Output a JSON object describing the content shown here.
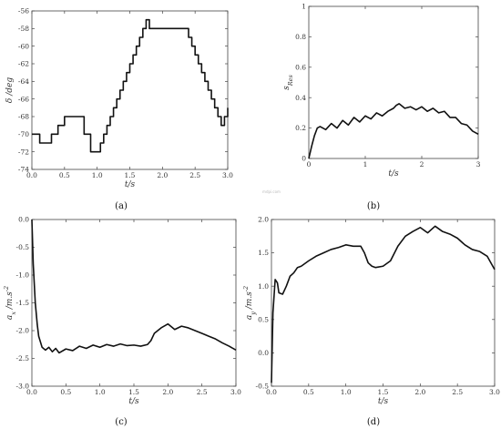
{
  "watermark": "mdpi.com",
  "chart_data": [
    {
      "type": "line",
      "caption": "(a)",
      "xlabel": "t/s",
      "ylabel": "δ /deg",
      "xlim": [
        0,
        3
      ],
      "ylim": [
        -74,
        -56
      ],
      "xticks": [
        "0.0",
        "0.5",
        "1.0",
        "1.5",
        "2.0",
        "2.5",
        "3.0"
      ],
      "yticks": [
        "-56",
        "-58",
        "-60",
        "-62",
        "-64",
        "-66",
        "-68",
        "-70",
        "-72",
        "-74"
      ],
      "series": [
        {
          "step": true,
          "x": [
            0,
            0.12,
            0.2,
            0.3,
            0.4,
            0.5,
            0.6,
            0.7,
            0.8,
            0.9,
            0.95,
            1.0,
            1.05,
            1.1,
            1.15,
            1.2,
            1.25,
            1.3,
            1.35,
            1.4,
            1.45,
            1.5,
            1.55,
            1.6,
            1.65,
            1.7,
            1.75,
            1.8,
            1.85,
            2.4,
            2.45,
            2.5,
            2.55,
            2.6,
            2.65,
            2.7,
            2.75,
            2.8,
            2.85,
            2.9,
            2.95,
            3.0
          ],
          "y": [
            -70,
            -71,
            -71,
            -70,
            -69,
            -68,
            -68,
            -68,
            -70,
            -72,
            -72,
            -72,
            -71,
            -70,
            -69,
            -68,
            -67,
            -66,
            -65,
            -64,
            -63,
            -62,
            -61,
            -60,
            -59,
            -58,
            -57,
            -58,
            -58,
            -59,
            -60,
            -61,
            -62,
            -63,
            -64,
            -65,
            -66,
            -67,
            -68,
            -69,
            -68,
            -67
          ]
        }
      ]
    },
    {
      "type": "line",
      "caption": "(b)",
      "xlabel": "t/s",
      "ylabel": "s_Res",
      "xlim": [
        0,
        3
      ],
      "ylim": [
        0,
        1
      ],
      "xticks": [
        "0",
        "1",
        "2",
        "3"
      ],
      "yticks": [
        "0",
        "0.2",
        "0.4",
        "0.6",
        "0.8",
        "1"
      ],
      "series": [
        {
          "x": [
            0,
            0.05,
            0.1,
            0.15,
            0.2,
            0.3,
            0.4,
            0.5,
            0.6,
            0.7,
            0.8,
            0.9,
            1.0,
            1.1,
            1.2,
            1.3,
            1.4,
            1.5,
            1.55,
            1.6,
            1.7,
            1.8,
            1.9,
            2.0,
            2.1,
            2.2,
            2.3,
            2.4,
            2.5,
            2.6,
            2.7,
            2.8,
            2.9,
            3.0
          ],
          "y": [
            0.0,
            0.08,
            0.15,
            0.2,
            0.21,
            0.19,
            0.23,
            0.2,
            0.25,
            0.22,
            0.27,
            0.24,
            0.28,
            0.26,
            0.3,
            0.28,
            0.31,
            0.33,
            0.35,
            0.36,
            0.33,
            0.34,
            0.32,
            0.34,
            0.31,
            0.33,
            0.3,
            0.31,
            0.27,
            0.27,
            0.23,
            0.22,
            0.18,
            0.16
          ]
        }
      ]
    },
    {
      "type": "line",
      "caption": "(c)",
      "xlabel": "t/s",
      "ylabel": "a_x /m.s^-2",
      "xlim": [
        0,
        3
      ],
      "ylim": [
        -3,
        0
      ],
      "xticks": [
        "0.0",
        "0.5",
        "1.0",
        "1.5",
        "2.0",
        "2.5",
        "3.0"
      ],
      "yticks": [
        "0.0",
        "-0.5",
        "-1.0",
        "-1.5",
        "-2.0",
        "-2.5",
        "-3.0"
      ],
      "series": [
        {
          "x": [
            0,
            0.02,
            0.05,
            0.08,
            0.1,
            0.15,
            0.2,
            0.25,
            0.3,
            0.35,
            0.4,
            0.5,
            0.6,
            0.7,
            0.8,
            0.9,
            1.0,
            1.1,
            1.2,
            1.3,
            1.4,
            1.5,
            1.6,
            1.7,
            1.75,
            1.8,
            1.9,
            2.0,
            2.1,
            2.2,
            2.3,
            2.4,
            2.5,
            2.6,
            2.7,
            2.8,
            2.9,
            3.0
          ],
          "y": [
            0.0,
            -0.8,
            -1.5,
            -1.9,
            -2.1,
            -2.3,
            -2.35,
            -2.3,
            -2.38,
            -2.32,
            -2.4,
            -2.33,
            -2.36,
            -2.28,
            -2.32,
            -2.26,
            -2.3,
            -2.25,
            -2.28,
            -2.24,
            -2.27,
            -2.26,
            -2.28,
            -2.25,
            -2.18,
            -2.05,
            -1.95,
            -1.88,
            -1.98,
            -1.92,
            -1.95,
            -2.0,
            -2.05,
            -2.1,
            -2.15,
            -2.22,
            -2.28,
            -2.35
          ]
        }
      ]
    },
    {
      "type": "line",
      "caption": "(d)",
      "xlabel": "t/s",
      "ylabel": "a_y /m.s^-2",
      "xlim": [
        0,
        3
      ],
      "ylim": [
        -0.5,
        2
      ],
      "xticks": [
        "0.0",
        "0.5",
        "1.0",
        "1.5",
        "2.0",
        "2.5",
        "3.0"
      ],
      "yticks": [
        "2.0",
        "1.5",
        "1.0",
        "0.5",
        "0.0",
        "-0.5"
      ],
      "series": [
        {
          "x": [
            0,
            0.02,
            0.05,
            0.08,
            0.1,
            0.15,
            0.2,
            0.25,
            0.3,
            0.35,
            0.4,
            0.5,
            0.6,
            0.7,
            0.8,
            0.9,
            1.0,
            1.1,
            1.2,
            1.25,
            1.3,
            1.35,
            1.4,
            1.5,
            1.6,
            1.7,
            1.8,
            1.9,
            2.0,
            2.1,
            2.2,
            2.3,
            2.4,
            2.5,
            2.6,
            2.7,
            2.8,
            2.9,
            2.95,
            3.0
          ],
          "y": [
            -0.45,
            0.6,
            1.1,
            1.05,
            0.9,
            0.88,
            1.0,
            1.15,
            1.2,
            1.28,
            1.3,
            1.38,
            1.45,
            1.5,
            1.55,
            1.58,
            1.62,
            1.6,
            1.6,
            1.5,
            1.35,
            1.3,
            1.28,
            1.3,
            1.38,
            1.6,
            1.75,
            1.82,
            1.88,
            1.8,
            1.9,
            1.82,
            1.78,
            1.72,
            1.62,
            1.55,
            1.52,
            1.45,
            1.35,
            1.25
          ]
        }
      ]
    }
  ]
}
